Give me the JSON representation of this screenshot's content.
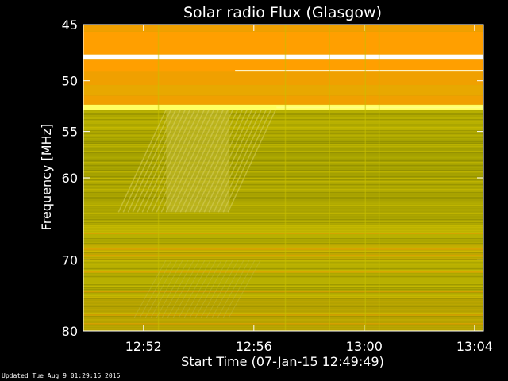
{
  "chart_data": {
    "type": "heatmap",
    "title": "Solar radio Flux (Glasgow)",
    "ylabel": "Frequency [MHz]",
    "xlabel": "Start Time (07-Jan-15 12:49:49)",
    "y_ticks": [
      {
        "value": 45,
        "label": "45"
      },
      {
        "value": 50,
        "label": "50"
      },
      {
        "value": 55,
        "label": "55"
      },
      {
        "value": 60,
        "label": "60"
      },
      {
        "value": 70,
        "label": "70"
      },
      {
        "value": 80,
        "label": "80"
      }
    ],
    "x_ticks": [
      {
        "minutes": 2.18,
        "label": "12:52"
      },
      {
        "minutes": 6.18,
        "label": "12:56"
      },
      {
        "minutes": 10.18,
        "label": "13:00"
      },
      {
        "minutes": 14.18,
        "label": "13:04"
      }
    ],
    "xlim_minutes": [
      0,
      14.5
    ],
    "ylim_mhz": [
      45,
      80
    ],
    "y_scale": "log",
    "colormap": [
      "#7a7a00",
      "#9c9a00",
      "#b8b000",
      "#d6c400",
      "#f0a000",
      "#ff9f00",
      "#ffff60",
      "#ffffff"
    ],
    "bands": [
      {
        "f1": 45.0,
        "f2": 45.6,
        "color": "#f0a000"
      },
      {
        "f1": 45.6,
        "f2": 47.6,
        "color": "#ff9f00"
      },
      {
        "f1": 47.6,
        "f2": 48.0,
        "color": "#ffffff"
      },
      {
        "f1": 48.0,
        "f2": 49.2,
        "color": "#ff9f00"
      },
      {
        "f1": 49.2,
        "f2": 50.4,
        "color": "#f0a000"
      },
      {
        "f1": 50.4,
        "f2": 51.4,
        "color": "#e8a800"
      },
      {
        "f1": 51.4,
        "f2": 52.3,
        "color": "#f0a000"
      },
      {
        "f1": 52.3,
        "f2": 52.8,
        "color": "#ffff60"
      },
      {
        "f1": 52.8,
        "f2": 55.5,
        "color": "#b8b000"
      },
      {
        "f1": 55.5,
        "f2": 60.0,
        "color": "#a8a400"
      },
      {
        "f1": 60.0,
        "f2": 65.0,
        "color": "#b0a800"
      },
      {
        "f1": 65.0,
        "f2": 68.0,
        "color": "#b8b000"
      },
      {
        "f1": 68.0,
        "f2": 70.0,
        "color": "#c8b000"
      },
      {
        "f1": 70.0,
        "f2": 75.0,
        "color": "#b8b000"
      },
      {
        "f1": 75.0,
        "f2": 80.0,
        "color": "#c0a800"
      }
    ],
    "burst": {
      "t1": 3.0,
      "t2": 5.3,
      "f1": 52.8,
      "f2": 64.0
    }
  },
  "footer": {
    "text": "Updated Tue Aug  9 01:29:16 2016"
  }
}
